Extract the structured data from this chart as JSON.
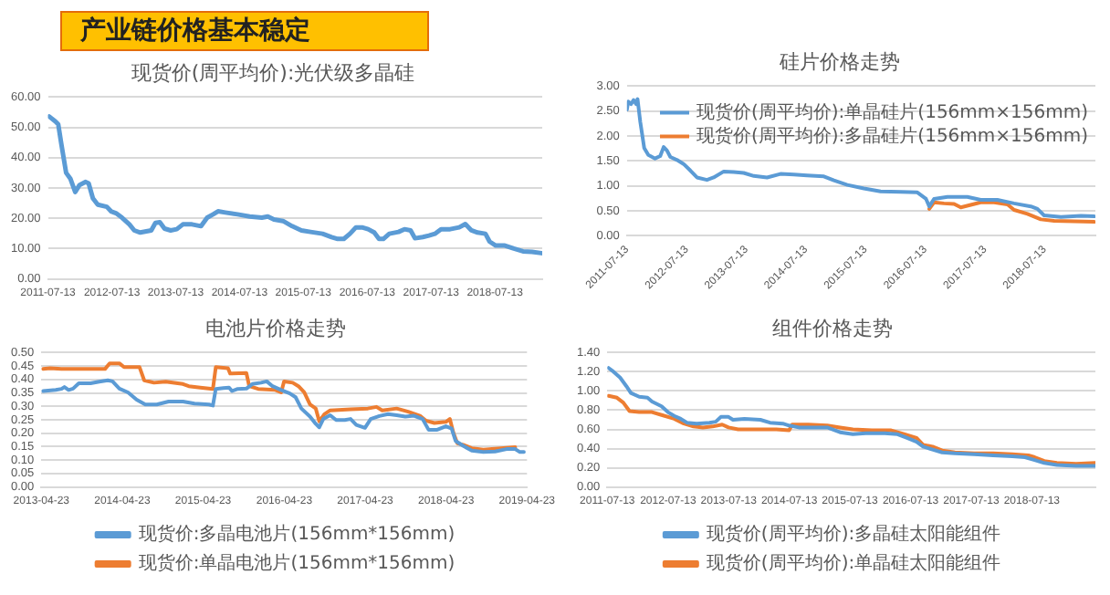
{
  "chart_data": [
    {
      "type": "line",
      "title": "现货价(周平均价):光伏级多晶硅",
      "annotations": [
        "产业链价格基本稳定"
      ],
      "color": "#5b9bd5",
      "x": [
        "2011-07-20",
        "2011-08-24",
        "2011-09-10",
        "2011-09-27",
        "2011-10-25",
        "2011-11-19",
        "2011-12-16",
        "2012-01-10",
        "2012-02-14",
        "2012-03-02",
        "2012-03-26",
        "2012-04-23",
        "2012-06-14",
        "2012-07-08",
        "2012-08-05",
        "2012-09-09",
        "2012-10-21",
        "2012-11-18",
        "2012-12-22",
        "2013-01-26",
        "2013-02-23",
        "2013-03-19",
        "2013-04-13",
        "2013-05-10",
        "2013-06-14",
        "2013-07-19",
        "2013-08-23",
        "2013-10-14",
        "2013-12-05",
        "2014-01-09",
        "2014-02-12",
        "2014-03-12",
        "2014-04-23",
        "2014-07-02",
        "2014-09-09",
        "2014-11-18",
        "2014-12-22",
        "2015-01-26",
        "2015-03-19",
        "2015-05-10",
        "2015-07-02",
        "2015-08-23",
        "2015-10-31",
        "2015-12-22",
        "2016-01-26",
        "2016-03-01",
        "2016-04-05",
        "2016-05-09",
        "2016-06-13",
        "2016-07-18",
        "2016-08-22",
        "2016-09-18",
        "2016-10-13",
        "2016-11-16",
        "2017-01-08",
        "2017-02-11",
        "2017-03-18",
        "2017-04-12",
        "2017-05-27",
        "2017-07-01",
        "2017-08-04",
        "2017-09-08",
        "2017-10-30",
        "2017-12-21",
        "2018-01-25",
        "2018-03-01",
        "2018-04-05",
        "2018-05-20",
        "2018-06-13",
        "2018-07-18",
        "2018-09-08",
        "2018-10-30",
        "2018-12-21",
        "2019-02-11",
        "2019-04-05"
      ],
      "values": [
        53.6,
        52,
        51,
        44.7,
        35,
        33,
        28.7,
        31,
        32,
        31.5,
        26.6,
        24.5,
        23.8,
        22.3,
        21.7,
        20.2,
        18,
        16,
        15.3,
        15.7,
        16,
        18.5,
        18.7,
        16.6,
        16,
        16.4,
        18,
        18,
        17.4,
        20.2,
        21.3,
        22.3,
        21.9,
        21.3,
        20.6,
        20.2,
        20.6,
        19.6,
        19.1,
        17.4,
        16,
        15.5,
        14.9,
        13.8,
        13.2,
        13.2,
        14.9,
        17,
        17,
        16.4,
        15.3,
        13.2,
        13.2,
        14.9,
        15.5,
        16.4,
        16,
        13.4,
        13.8,
        14.3,
        14.9,
        16.4,
        16.4,
        17,
        18.1,
        16,
        15.3,
        14.9,
        12.3,
        11,
        11,
        10,
        9.1,
        8.9,
        8.5
      ],
      "xlim": [
        "2011-07-13",
        "2019-04-10"
      ],
      "xticks": [
        "2011-07-13",
        "2012-07-13",
        "2013-07-13",
        "2014-07-13",
        "2015-07-13",
        "2016-07-13",
        "2017-07-13",
        "2018-07-13"
      ],
      "ylim": [
        0,
        60
      ],
      "yticks": [
        {
          "value": 0,
          "label": "0.00"
        },
        {
          "value": 10,
          "label": "10.00"
        },
        {
          "value": 20,
          "label": "20.00"
        },
        {
          "value": 30,
          "label": "30.00"
        },
        {
          "value": 40,
          "label": "40.00"
        },
        {
          "value": 50,
          "label": "50.00"
        },
        {
          "value": 60,
          "label": "60.00"
        }
      ],
      "grid": "y",
      "legend": false
    },
    {
      "type": "line",
      "title": "硅片价格走势",
      "series": [
        {
          "name": "现货价(周平均价):单晶硅片(156mm×156mm)",
          "color": "#5b9bd5",
          "x": [
            "2011-07-13",
            "2011-07-21",
            "2011-08-07",
            "2011-08-23",
            "2011-09-08",
            "2011-09-16",
            "2011-10-03",
            "2011-10-27",
            "2011-11-21",
            "2012-01-01",
            "2012-02-02",
            "2012-02-23",
            "2012-03-14",
            "2012-04-04",
            "2012-05-15",
            "2012-06-24",
            "2012-08-04",
            "2012-09-14",
            "2012-11-14",
            "2012-12-25",
            "2013-02-25",
            "2013-04-27",
            "2013-06-27",
            "2013-08-28",
            "2013-11-17",
            "2014-02-07",
            "2014-04-30",
            "2014-07-20",
            "2014-10-31",
            "2014-12-31",
            "2015-03-23",
            "2015-07-03",
            "2015-10-13",
            "2016-02-13",
            "2016-05-25",
            "2016-07-17",
            "2016-08-06",
            "2016-09-04",
            "2016-11-25",
            "2017-03-27",
            "2017-06-17",
            "2017-09-27",
            "2018-01-07",
            "2018-04-20",
            "2018-05-30",
            "2018-07-10",
            "2018-10-21",
            "2019-02-20",
            "2019-05-13"
          ],
          "values": [
            2.53,
            2.69,
            2.64,
            2.72,
            2.64,
            2.74,
            2.28,
            1.76,
            1.62,
            1.55,
            1.6,
            1.78,
            1.71,
            1.58,
            1.52,
            1.44,
            1.31,
            1.17,
            1.12,
            1.17,
            1.29,
            1.28,
            1.26,
            1.2,
            1.17,
            1.24,
            1.23,
            1.21,
            1.19,
            1.11,
            1.02,
            0.95,
            0.89,
            0.88,
            0.87,
            0.74,
            0.59,
            0.74,
            0.78,
            0.78,
            0.72,
            0.72,
            0.65,
            0.59,
            0.54,
            0.41,
            0.38,
            0.4,
            0.39
          ]
        },
        {
          "name": "现货价(周平均价):多晶硅片(156mm×156mm)",
          "color": "#ed7d31",
          "x": [
            "2016-08-06",
            "2016-09-04",
            "2016-11-04",
            "2017-01-05",
            "2017-02-15",
            "2017-04-17",
            "2017-06-17",
            "2017-09-07",
            "2017-11-28",
            "2018-01-07",
            "2018-03-30",
            "2018-06-20",
            "2018-09-10",
            "2019-01-10",
            "2019-05-13"
          ],
          "values": [
            0.54,
            0.67,
            0.65,
            0.64,
            0.57,
            0.62,
            0.67,
            0.67,
            0.63,
            0.52,
            0.44,
            0.33,
            0.3,
            0.29,
            0.28
          ]
        }
      ],
      "xlim": [
        "2011-07-13",
        "2019-05-20"
      ],
      "xticks": [
        "2011-07-13",
        "2012-07-13",
        "2013-07-13",
        "2014-07-13",
        "2015-07-13",
        "2016-07-13",
        "2017-07-13",
        "2018-07-13"
      ],
      "ylim": [
        0,
        3
      ],
      "yticks": [
        {
          "value": 0,
          "label": "0.00"
        },
        {
          "value": 0.5,
          "label": "0.50"
        },
        {
          "value": 1,
          "label": "1.00"
        },
        {
          "value": 1.5,
          "label": "1.50"
        },
        {
          "value": 2,
          "label": "2.00"
        },
        {
          "value": 2.5,
          "label": "2.50"
        },
        {
          "value": 3,
          "label": "3.00"
        }
      ],
      "grid": "y",
      "legend": "top right"
    },
    {
      "type": "line",
      "title": "电池片价格走势",
      "series": [
        {
          "name": "现货价:多晶电池片(156mm*156mm)",
          "color": "#5b9bd5",
          "x": [
            "2013-05-01",
            "2013-06-27",
            "2013-07-23",
            "2013-08-05",
            "2013-08-24",
            "2013-09-13",
            "2013-10-09",
            "2013-12-01",
            "2014-01-09",
            "2014-02-17",
            "2014-03-10",
            "2014-04-10",
            "2014-05-19",
            "2014-06-27",
            "2014-08-05",
            "2014-09-26",
            "2014-11-18",
            "2015-01-22",
            "2015-03-15",
            "2015-05-19",
            "2015-06-06",
            "2015-06-19",
            "2015-07-23",
            "2015-08-18",
            "2015-08-31",
            "2015-09-26",
            "2015-11-04",
            "2015-12-01",
            "2016-01-09",
            "2016-02-04",
            "2016-03-01",
            "2016-04-09",
            "2016-05-18",
            "2016-06-13",
            "2016-07-09",
            "2016-08-17",
            "2016-09-12",
            "2016-09-28",
            "2016-10-16",
            "2016-11-16",
            "2016-12-13",
            "2017-01-21",
            "2017-02-16",
            "2017-03-14",
            "2017-04-22",
            "2017-05-18",
            "2017-06-26",
            "2017-08-04",
            "2017-09-12",
            "2017-10-21",
            "2017-11-29",
            "2018-01-07",
            "2018-02-03",
            "2018-03-14",
            "2018-04-22",
            "2018-05-18",
            "2018-06-05",
            "2018-07-09",
            "2018-08-17",
            "2018-10-08",
            "2018-11-30",
            "2019-01-21",
            "2019-03-01",
            "2019-03-22",
            "2019-04-09"
          ],
          "values": [
            0.357,
            0.361,
            0.365,
            0.372,
            0.361,
            0.366,
            0.386,
            0.386,
            0.392,
            0.397,
            0.393,
            0.366,
            0.352,
            0.325,
            0.307,
            0.307,
            0.318,
            0.318,
            0.31,
            0.307,
            0.303,
            0.365,
            0.368,
            0.37,
            0.357,
            0.365,
            0.366,
            0.383,
            0.388,
            0.393,
            0.375,
            0.361,
            0.348,
            0.334,
            0.292,
            0.262,
            0.235,
            0.222,
            0.253,
            0.267,
            0.249,
            0.249,
            0.253,
            0.231,
            0.22,
            0.253,
            0.264,
            0.271,
            0.267,
            0.262,
            0.265,
            0.253,
            0.213,
            0.213,
            0.226,
            0.217,
            0.171,
            0.153,
            0.135,
            0.13,
            0.132,
            0.141,
            0.141,
            0.13,
            0.13
          ]
        },
        {
          "name": "现货价:单晶电池片(156mm*156mm)",
          "color": "#ed7d31",
          "x": [
            "2013-05-01",
            "2013-06-01",
            "2013-07-23",
            "2013-10-09",
            "2014-02-04",
            "2014-02-25",
            "2014-04-10",
            "2014-05-01",
            "2014-07-10",
            "2014-07-31",
            "2014-09-13",
            "2014-11-05",
            "2015-01-22",
            "2015-02-17",
            "2015-04-10",
            "2015-06-06",
            "2015-06-19",
            "2015-08-13",
            "2015-08-23",
            "2015-11-04",
            "2015-11-17",
            "2015-12-27",
            "2016-03-14",
            "2016-04-09",
            "2016-04-22",
            "2016-05-31",
            "2016-06-26",
            "2016-07-22",
            "2016-08-17",
            "2016-09-12",
            "2016-09-28",
            "2016-10-21",
            "2016-11-16",
            "2017-02-16",
            "2017-05-05",
            "2017-06-13",
            "2017-07-09",
            "2017-09-12",
            "2017-11-03",
            "2017-12-26",
            "2018-01-21",
            "2018-03-01",
            "2018-04-22",
            "2018-05-10",
            "2018-05-26",
            "2018-06-13",
            "2018-07-09",
            "2018-08-17",
            "2018-10-08",
            "2018-12-26",
            "2019-03-01"
          ],
          "values": [
            0.439,
            0.442,
            0.439,
            0.439,
            0.439,
            0.46,
            0.46,
            0.446,
            0.446,
            0.397,
            0.388,
            0.392,
            0.383,
            0.375,
            0.37,
            0.365,
            0.446,
            0.442,
            0.422,
            0.424,
            0.375,
            0.365,
            0.361,
            0.352,
            0.393,
            0.388,
            0.375,
            0.352,
            0.307,
            0.292,
            0.244,
            0.271,
            0.285,
            0.289,
            0.292,
            0.298,
            0.285,
            0.292,
            0.28,
            0.265,
            0.247,
            0.238,
            0.242,
            0.253,
            0.202,
            0.162,
            0.157,
            0.144,
            0.139,
            0.144,
            0.148
          ]
        }
      ],
      "xlim": [
        "2013-04-23",
        "2019-04-23"
      ],
      "xticks": [
        "2013-04-23",
        "2014-04-23",
        "2015-04-23",
        "2016-04-23",
        "2017-04-23",
        "2018-04-23",
        "2019-04-23"
      ],
      "ylim": [
        0,
        0.5
      ],
      "yticks": [
        {
          "value": 0,
          "label": "0.00"
        },
        {
          "value": 0.05,
          "label": "0.05"
        },
        {
          "value": 0.1,
          "label": "0.10"
        },
        {
          "value": 0.15,
          "label": "0.15"
        },
        {
          "value": 0.2,
          "label": "0.20"
        },
        {
          "value": 0.25,
          "label": "0.25"
        },
        {
          "value": 0.3,
          "label": "0.30"
        },
        {
          "value": 0.35,
          "label": "0.35"
        },
        {
          "value": 0.4,
          "label": "0.40"
        },
        {
          "value": 0.45,
          "label": "0.45"
        },
        {
          "value": 0.5,
          "label": "0.50"
        }
      ],
      "grid": "y",
      "legend": "bottom"
    },
    {
      "type": "line",
      "title": "组件价格走势",
      "series": [
        {
          "name": "现货价(周平均价):多晶硅太阳能组件",
          "color": "#5b9bd5",
          "x": [
            "2011-07-21",
            "2011-08-20",
            "2011-09-28",
            "2011-11-05",
            "2011-12-02",
            "2012-01-21",
            "2012-03-11",
            "2012-04-07",
            "2012-06-04",
            "2012-07-12",
            "2012-08-19",
            "2012-09-27",
            "2012-11-04",
            "2013-01-01",
            "2013-03-19",
            "2013-04-26",
            "2013-05-27",
            "2013-07-12",
            "2013-08-08",
            "2013-10-16",
            "2014-01-20",
            "2014-03-19",
            "2014-06-04",
            "2014-07-12",
            "2014-09-08",
            "2014-12-13",
            "2015-02-27",
            "2015-05-15",
            "2015-07-31",
            "2015-10-16",
            "2016-02-08",
            "2016-04-25",
            "2016-06-22",
            "2016-08-18",
            "2016-09-26",
            "2016-11-22",
            "2017-01-19",
            "2017-04-06",
            "2017-07-30",
            "2017-11-22",
            "2018-03-18",
            "2018-06-02",
            "2018-07-30",
            "2018-09-26",
            "2018-12-11",
            "2019-04-06",
            "2019-07-30"
          ],
          "values": [
            1.24,
            1.2,
            1.14,
            1.05,
            0.98,
            0.94,
            0.93,
            0.89,
            0.84,
            0.78,
            0.74,
            0.71,
            0.67,
            0.66,
            0.67,
            0.68,
            0.73,
            0.73,
            0.7,
            0.71,
            0.7,
            0.67,
            0.66,
            0.64,
            0.62,
            0.62,
            0.62,
            0.57,
            0.55,
            0.56,
            0.56,
            0.55,
            0.51,
            0.47,
            0.42,
            0.39,
            0.36,
            0.35,
            0.34,
            0.33,
            0.32,
            0.31,
            0.28,
            0.25,
            0.23,
            0.22,
            0.22
          ]
        },
        {
          "name": "现货价(周平均价):单晶硅太阳能组件",
          "color": "#ed7d31",
          "x": [
            "2011-07-21",
            "2011-09-09",
            "2011-10-17",
            "2011-11-24",
            "2012-01-21",
            "2012-04-07",
            "2012-06-04",
            "2012-08-19",
            "2012-10-16",
            "2012-12-13",
            "2013-02-08",
            "2013-04-07",
            "2013-06-04",
            "2013-07-12",
            "2013-09-08",
            "2014-01-01",
            "2014-04-26",
            "2014-07-12",
            "2014-07-31",
            "2014-11-04",
            "2015-02-27",
            "2015-05-15",
            "2015-07-31",
            "2015-11-23",
            "2016-03-18",
            "2016-06-03",
            "2016-08-18",
            "2016-09-26",
            "2016-11-22",
            "2017-01-19",
            "2017-04-06",
            "2017-07-30",
            "2017-11-22",
            "2018-03-18",
            "2018-06-22",
            "2018-07-30",
            "2018-09-26",
            "2018-12-11",
            "2019-04-06",
            "2019-07-30"
          ],
          "values": [
            0.95,
            0.93,
            0.88,
            0.79,
            0.78,
            0.78,
            0.75,
            0.71,
            0.66,
            0.63,
            0.62,
            0.63,
            0.65,
            0.62,
            0.6,
            0.6,
            0.6,
            0.59,
            0.65,
            0.65,
            0.64,
            0.62,
            0.6,
            0.59,
            0.59,
            0.55,
            0.51,
            0.44,
            0.42,
            0.38,
            0.36,
            0.35,
            0.35,
            0.34,
            0.33,
            0.31,
            0.27,
            0.25,
            0.24,
            0.25
          ]
        }
      ],
      "xlim": [
        "2011-07-13",
        "2019-07-31"
      ],
      "xticks": [
        "2011-07-13",
        "2012-07-13",
        "2013-07-13",
        "2014-07-13",
        "2015-07-13",
        "2016-07-13",
        "2017-07-13",
        "2018-07-13"
      ],
      "ylim": [
        0,
        1.4
      ],
      "yticks": [
        {
          "value": 0,
          "label": "0.00"
        },
        {
          "value": 0.2,
          "label": "0.20"
        },
        {
          "value": 0.4,
          "label": "0.40"
        },
        {
          "value": 0.6,
          "label": "0.60"
        },
        {
          "value": 0.8,
          "label": "0.80"
        },
        {
          "value": 1,
          "label": "1.00"
        },
        {
          "value": 1.2,
          "label": "1.20"
        },
        {
          "value": 1.4,
          "label": "1.40"
        }
      ],
      "grid": "y",
      "legend": "bottom"
    }
  ]
}
